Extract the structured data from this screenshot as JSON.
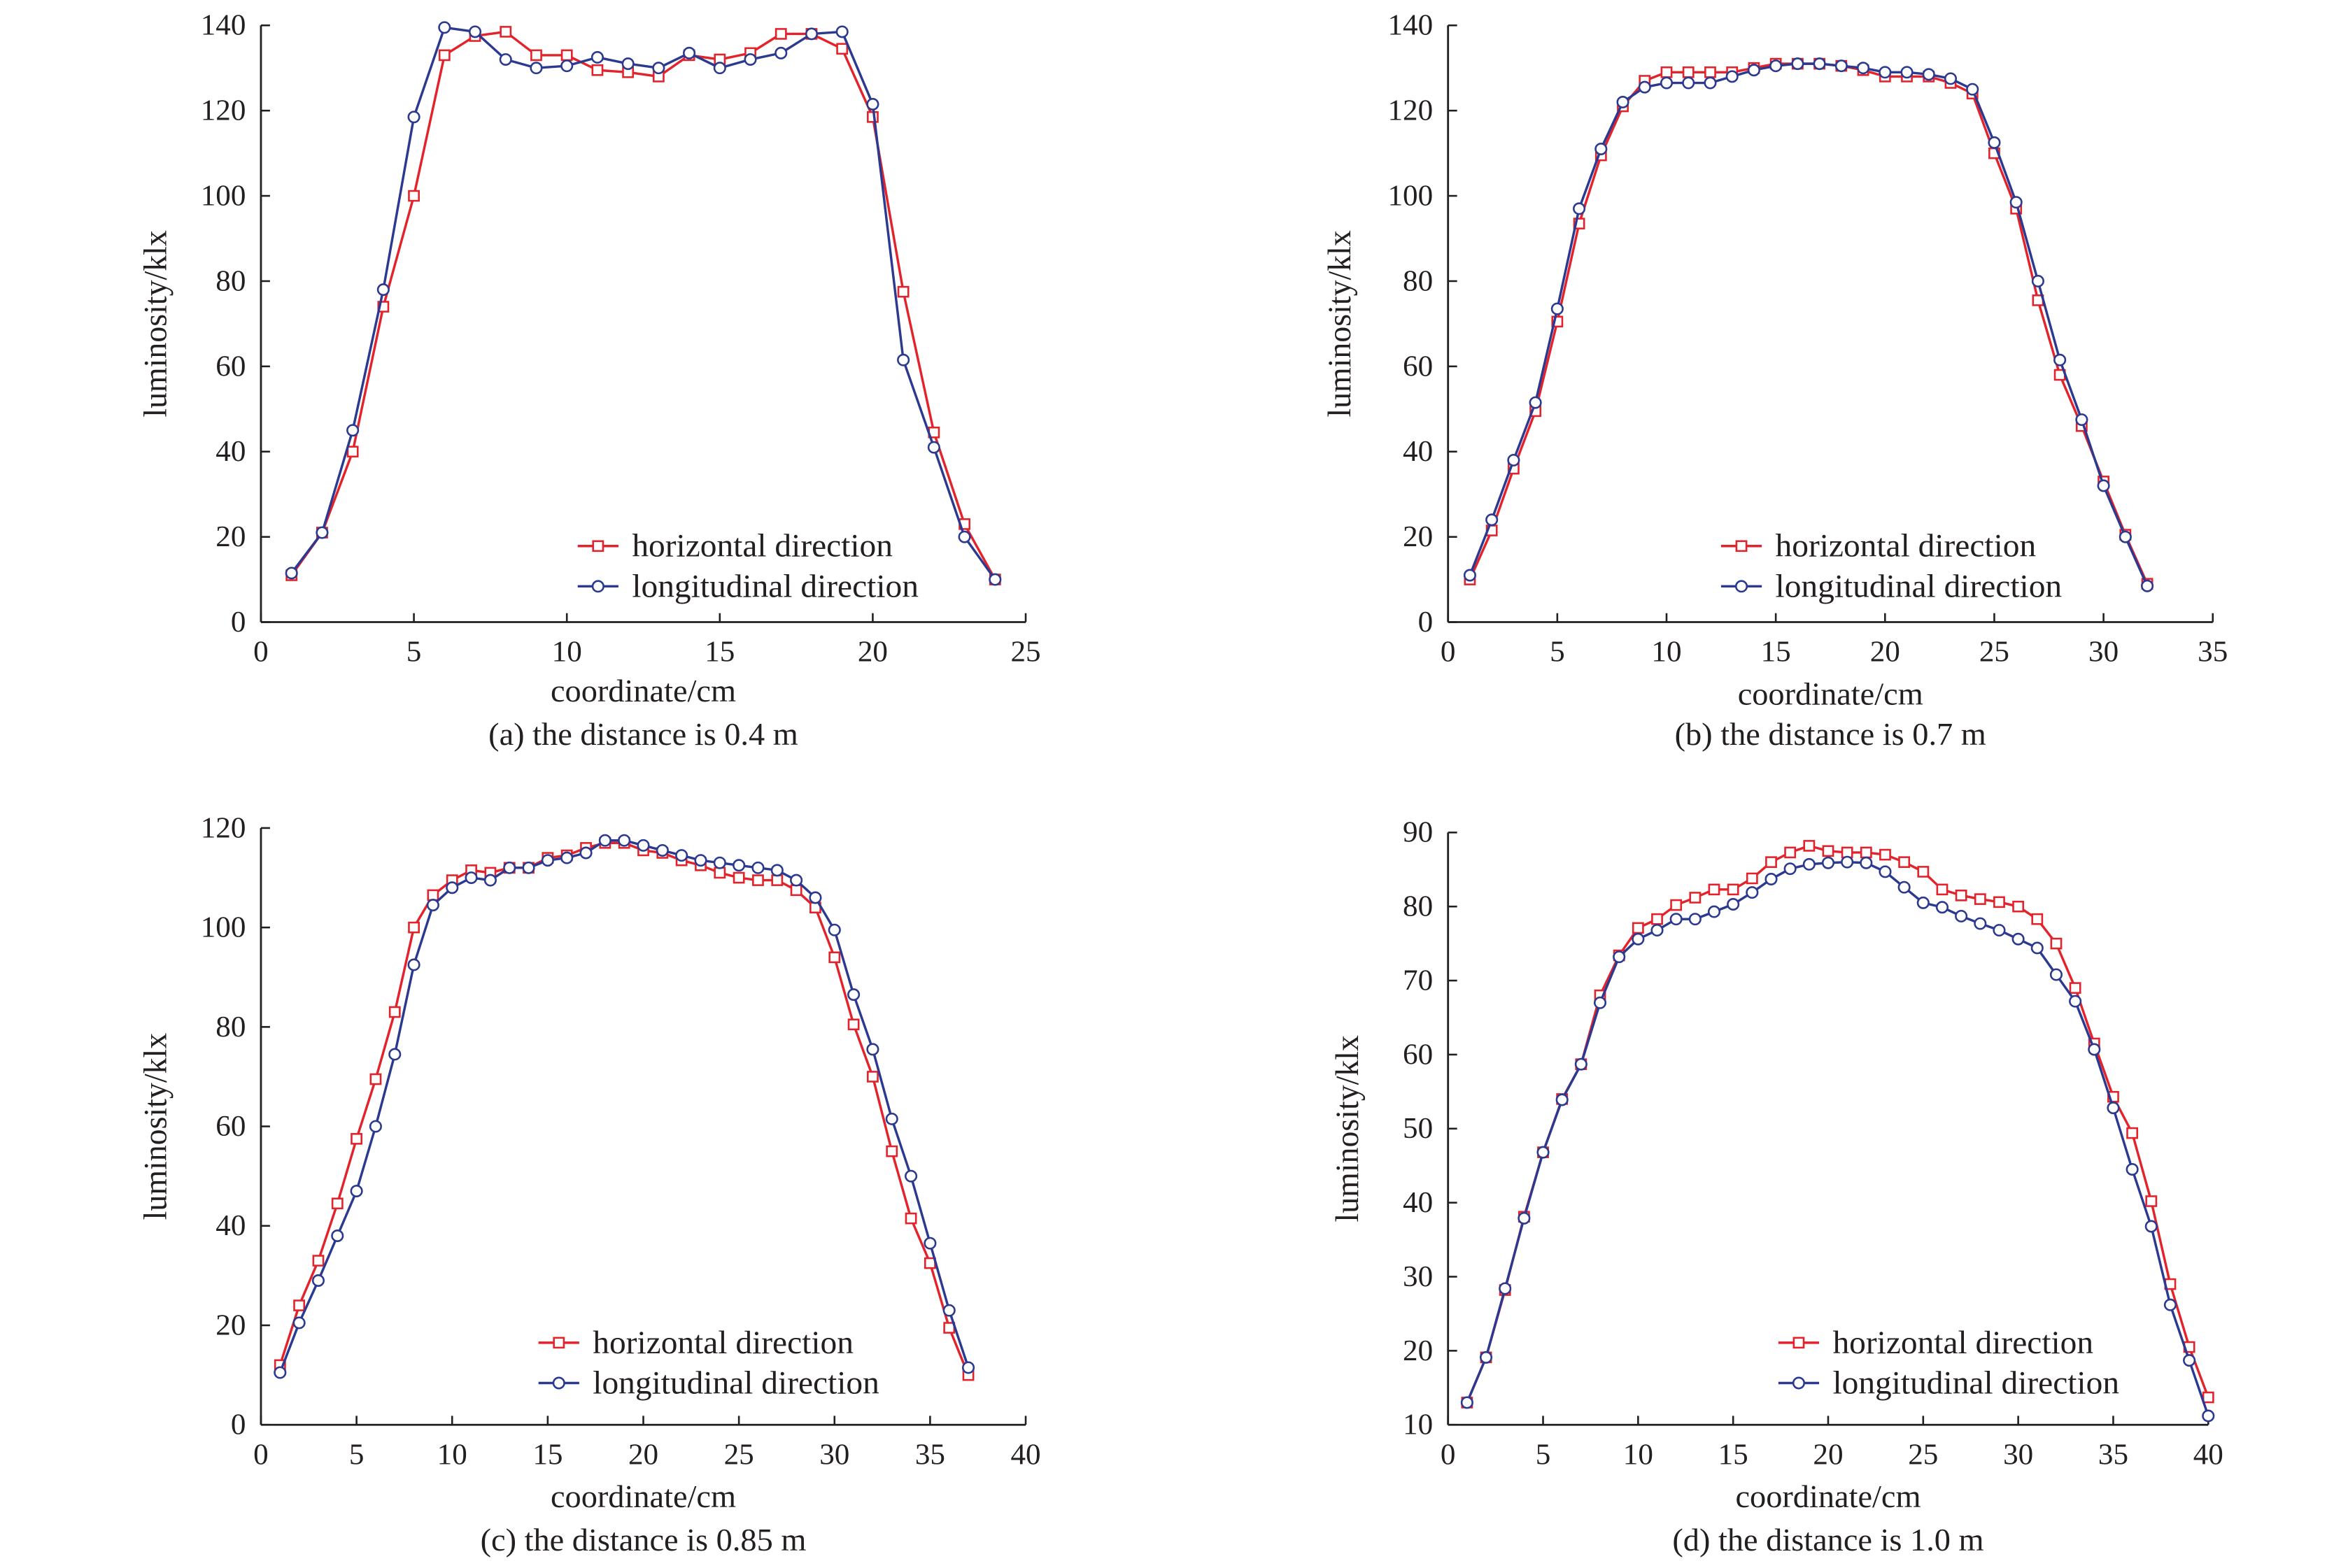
{
  "chart_data": [
    {
      "type": "line",
      "caption": "(a) the distance is 0.4 m",
      "xlabel": "coordinate/cm",
      "ylabel": "luminosity/klx",
      "xlim": [
        0,
        25
      ],
      "ylim": [
        0,
        140
      ],
      "xticks": [
        0,
        5,
        10,
        15,
        20,
        25
      ],
      "yticks": [
        0,
        20,
        40,
        60,
        80,
        100,
        120,
        140
      ],
      "grid": false,
      "legend": "bottom-right",
      "series": [
        {
          "name": "horizontal direction",
          "color": "#e3232b",
          "marker": "square",
          "x": [
            1,
            2,
            3,
            4,
            5,
            6,
            7,
            8,
            9,
            10,
            11,
            12,
            13,
            14,
            15,
            16,
            17,
            18,
            19,
            20,
            21,
            22,
            23,
            24
          ],
          "y": [
            11,
            21,
            40,
            74,
            100,
            133,
            137.5,
            138.5,
            133,
            133,
            129.5,
            129,
            128,
            133,
            132,
            133.5,
            138,
            138,
            134.5,
            118.5,
            77.5,
            44.5,
            23,
            10
          ]
        },
        {
          "name": "longitudinal direction",
          "color": "#2b3990",
          "marker": "circle",
          "x": [
            1,
            2,
            3,
            4,
            5,
            6,
            7,
            8,
            9,
            10,
            11,
            12,
            13,
            14,
            15,
            16,
            17,
            18,
            19,
            20,
            21,
            22,
            23,
            24
          ],
          "y": [
            11.5,
            21,
            45,
            78,
            118.5,
            139.5,
            138.5,
            132,
            130,
            130.5,
            132.5,
            131,
            130,
            133.5,
            130,
            132,
            133.5,
            138,
            138.5,
            121.5,
            61.5,
            41,
            20,
            10
          ]
        }
      ]
    },
    {
      "type": "line",
      "caption": "(b) the distance is 0.7 m",
      "xlabel": "coordinate/cm",
      "ylabel": "luminosity/klx",
      "xlim": [
        0,
        35
      ],
      "ylim": [
        0,
        140
      ],
      "xticks": [
        0,
        5,
        10,
        15,
        20,
        25,
        30,
        35
      ],
      "yticks": [
        0,
        20,
        40,
        60,
        80,
        100,
        120,
        140
      ],
      "grid": false,
      "legend": "bottom-right",
      "series": [
        {
          "name": "horizontal direction",
          "color": "#e3232b",
          "marker": "square",
          "x": [
            1,
            2,
            3,
            4,
            5,
            6,
            7,
            8,
            9,
            10,
            11,
            12,
            13,
            14,
            15,
            16,
            17,
            18,
            19,
            20,
            21,
            22,
            23,
            24,
            25,
            26,
            27,
            28,
            29,
            30,
            31,
            32
          ],
          "y": [
            10,
            21.5,
            36,
            49.5,
            70.5,
            93.5,
            109.5,
            121,
            127,
            129,
            129,
            129,
            129,
            130,
            131,
            131,
            131,
            130.5,
            129.5,
            128,
            128,
            128,
            126.5,
            124,
            110,
            97,
            75.5,
            58,
            46,
            33,
            20.5,
            9
          ]
        },
        {
          "name": "longitudinal direction",
          "color": "#2b3990",
          "marker": "circle",
          "x": [
            1,
            2,
            3,
            4,
            5,
            6,
            7,
            8,
            9,
            10,
            11,
            12,
            13,
            14,
            15,
            16,
            17,
            18,
            19,
            20,
            21,
            22,
            23,
            24,
            25,
            26,
            27,
            28,
            29,
            30,
            31,
            32
          ],
          "y": [
            11,
            24,
            38,
            51.5,
            73.5,
            97,
            111,
            122,
            125.5,
            126.5,
            126.5,
            126.5,
            128,
            129.5,
            130.5,
            131,
            131,
            130.5,
            130,
            129,
            129,
            128.5,
            127.5,
            125,
            112.5,
            98.5,
            80,
            61.5,
            47.5,
            32,
            20,
            8.5
          ]
        }
      ]
    },
    {
      "type": "line",
      "caption": "(c) the distance is 0.85 m",
      "xlabel": "coordinate/cm",
      "ylabel": "luminosity/klx",
      "xlim": [
        0,
        40
      ],
      "ylim": [
        0,
        120
      ],
      "xticks": [
        0,
        5,
        10,
        15,
        20,
        25,
        30,
        35,
        40
      ],
      "yticks": [
        0,
        20,
        40,
        60,
        80,
        100,
        120
      ],
      "grid": false,
      "legend": "bottom-center",
      "series": [
        {
          "name": "horizontal direction",
          "color": "#e3232b",
          "marker": "square",
          "x": [
            1,
            2,
            3,
            4,
            5,
            6,
            7,
            8,
            9,
            10,
            11,
            12,
            13,
            14,
            15,
            16,
            17,
            18,
            19,
            20,
            21,
            22,
            23,
            24,
            25,
            26,
            27,
            28,
            29,
            30,
            31,
            32,
            33,
            34,
            35,
            36,
            37
          ],
          "y": [
            12,
            24,
            33,
            44.5,
            57.5,
            69.5,
            83,
            100,
            106.5,
            109.5,
            111.5,
            111,
            112,
            112,
            114,
            114.5,
            116,
            117,
            117,
            115.5,
            115,
            113.5,
            112.5,
            111,
            110,
            109.5,
            109.5,
            107.5,
            104,
            94,
            80.5,
            70,
            55,
            41.5,
            32.5,
            19.5,
            10
          ]
        },
        {
          "name": "longitudinal direction",
          "color": "#2b3990",
          "marker": "circle",
          "x": [
            1,
            2,
            3,
            4,
            5,
            6,
            7,
            8,
            9,
            10,
            11,
            12,
            13,
            14,
            15,
            16,
            17,
            18,
            19,
            20,
            21,
            22,
            23,
            24,
            25,
            26,
            27,
            28,
            29,
            30,
            31,
            32,
            33,
            34,
            35,
            36,
            37
          ],
          "y": [
            10.5,
            20.5,
            29,
            38,
            47,
            60,
            74.5,
            92.5,
            104.5,
            108,
            110,
            109.5,
            112,
            112,
            113.5,
            114,
            115,
            117.5,
            117.5,
            116.5,
            115.5,
            114.5,
            113.5,
            113,
            112.5,
            112,
            111.5,
            109.5,
            106,
            99.5,
            86.5,
            75.5,
            61.5,
            50,
            36.5,
            23,
            11.5
          ]
        }
      ]
    },
    {
      "type": "line",
      "caption": "(d) the distance is 1.0 m",
      "xlabel": "coordinate/cm",
      "ylabel": "luminosity/klx",
      "xlim": [
        0,
        40
      ],
      "ylim": [
        10,
        90
      ],
      "xticks": [
        0,
        5,
        10,
        15,
        20,
        25,
        30,
        35,
        40
      ],
      "yticks": [
        10,
        20,
        30,
        40,
        50,
        60,
        70,
        80,
        90
      ],
      "grid": false,
      "legend": "bottom-right",
      "series": [
        {
          "name": "horizontal direction",
          "color": "#e3232b",
          "marker": "square",
          "x": [
            1,
            2,
            3,
            4,
            5,
            6,
            7,
            8,
            9,
            10,
            11,
            12,
            13,
            14,
            15,
            16,
            17,
            18,
            19,
            20,
            21,
            22,
            23,
            24,
            25,
            26,
            27,
            28,
            29,
            30,
            31,
            32,
            33,
            34,
            35,
            36,
            37,
            38,
            39,
            40
          ],
          "y": [
            13,
            19.1,
            28.2,
            38.1,
            46.8,
            54,
            58.7,
            68,
            73.4,
            77.1,
            78.3,
            80.2,
            81.2,
            82.3,
            82.3,
            83.8,
            86,
            87.3,
            88.2,
            87.5,
            87.3,
            87.3,
            87,
            86,
            84.7,
            82.3,
            81.5,
            81,
            80.6,
            80,
            78.3,
            75,
            69,
            61.5,
            54.3,
            49.4,
            40.2,
            29,
            20.5,
            13.7
          ]
        },
        {
          "name": "longitudinal direction",
          "color": "#2b3990",
          "marker": "circle",
          "x": [
            1,
            2,
            3,
            4,
            5,
            6,
            7,
            8,
            9,
            10,
            11,
            12,
            13,
            14,
            15,
            16,
            17,
            18,
            19,
            20,
            21,
            22,
            23,
            24,
            25,
            26,
            27,
            28,
            29,
            30,
            31,
            32,
            33,
            34,
            35,
            36,
            37,
            38,
            39,
            40
          ],
          "y": [
            13,
            19.1,
            28.4,
            37.9,
            46.8,
            53.9,
            58.7,
            67,
            73.2,
            75.6,
            76.8,
            78.3,
            78.3,
            79.3,
            80.3,
            81.9,
            83.7,
            85.1,
            85.7,
            85.9,
            86,
            85.9,
            84.7,
            82.6,
            80.5,
            79.9,
            78.7,
            77.7,
            76.8,
            75.6,
            74.4,
            70.8,
            67.2,
            60.7,
            52.8,
            44.5,
            36.8,
            26.2,
            18.7,
            11.2
          ]
        }
      ]
    }
  ]
}
